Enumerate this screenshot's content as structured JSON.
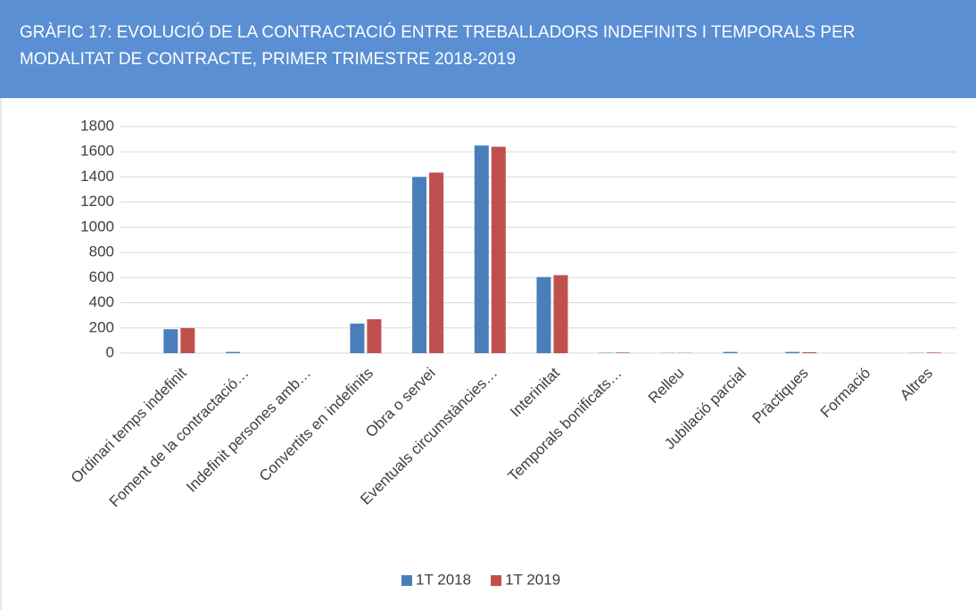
{
  "chart_data": {
    "type": "bar",
    "title": [
      "GRÀFIC 17: EVOLUCIÓ DE LA CONTRACTACIÓ ENTRE TREBALLADORS INDEFINITS I TEMPORALS PER",
      "MODALITAT DE CONTRACTE, PRIMER TRIMESTRE 2018-2019"
    ],
    "categories": [
      "Ordinari temps indefinit",
      "Foment de la contractació…",
      "Indefinit persones amb…",
      "Convertits en indefinits",
      "Obra o servei",
      "Eventuals circumstàncies…",
      "Interinitat",
      "Temporals bonificats…",
      "Relleu",
      "Jubilació parcial",
      "Pràctiques",
      "Formació",
      "Altres"
    ],
    "series": [
      {
        "name": "1T 2018",
        "color": "#4a7ebb",
        "values": [
          190,
          10,
          0,
          235,
          1400,
          1650,
          605,
          3,
          2,
          10,
          10,
          0,
          2
        ]
      },
      {
        "name": "1T 2019",
        "color": "#c0504d",
        "values": [
          200,
          0,
          0,
          270,
          1435,
          1640,
          620,
          5,
          2,
          0,
          8,
          0,
          5
        ]
      }
    ],
    "ylim": [
      0,
      1800
    ],
    "yticks": [
      0,
      200,
      400,
      600,
      800,
      1000,
      1200,
      1400,
      1600,
      1800
    ],
    "grid": true,
    "legend": "bottom"
  }
}
